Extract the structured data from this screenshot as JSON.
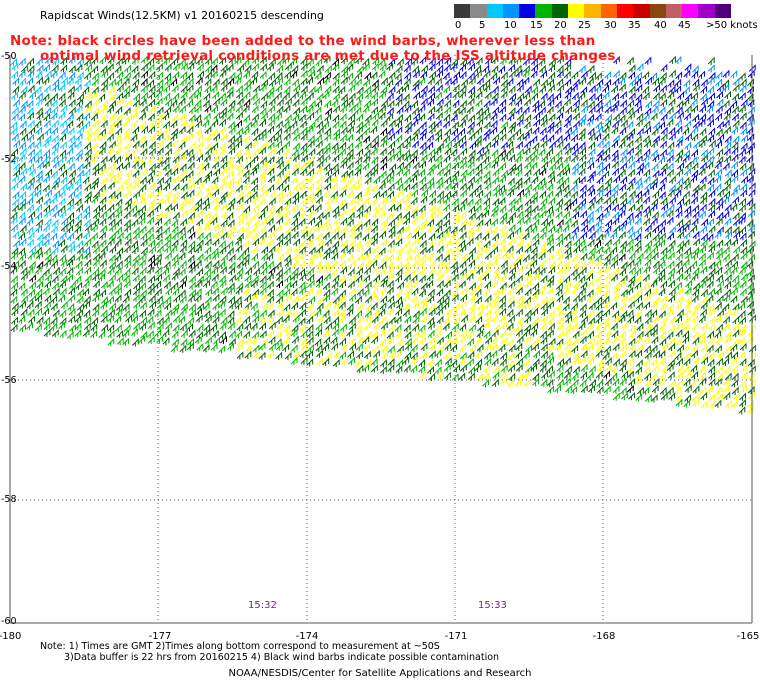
{
  "header": {
    "title": "Rapidscat Winds(12.5KM) v1 20160215 descending"
  },
  "legend": {
    "colors": [
      "#3a3a3a",
      "#8a8a8a",
      "#00c8ff",
      "#0096ff",
      "#0000e0",
      "#00b400",
      "#006400",
      "#ffff00",
      "#ffb400",
      "#ff6400",
      "#ff0000",
      "#c80000",
      "#8b4513",
      "#c06060",
      "#ff00ff",
      "#a000c8",
      "#500078"
    ],
    "labels": [
      "0",
      "5",
      "10",
      "15",
      "20",
      "25",
      "30",
      "35",
      "40",
      "45",
      ">50 knots"
    ]
  },
  "note": {
    "line1": "Note: black circles have been added to the wind barbs, wherever less than",
    "line2": "optimal wind retrieval conditions are met due to the ISS altitude changes."
  },
  "map": {
    "lat_labels": [
      "-50",
      "-52",
      "-54",
      "-56",
      "-58",
      "-60"
    ],
    "lon_labels": [
      "-180",
      "-177",
      "-174",
      "-171",
      "-168",
      "-165"
    ],
    "time_labels": [
      "15:32",
      "15:33"
    ],
    "grid_color": "#555555",
    "barb_colors": {
      "light_blue": "#00c8ff",
      "blue": "#0000e0",
      "mid_blue": "#0096ff",
      "green": "#00b400",
      "dark_green": "#006400",
      "yellow": "#ffff00",
      "black": "#000000"
    }
  },
  "footnote": {
    "line1": "Note: 1) Times are GMT 2)Times along bottom correspond to measurement at ~50S",
    "line2": "3)Data buffer is 22 hrs from 20160215 4) Black wind barbs indicate possible contamination"
  },
  "credit": "NOAA/NESDIS/Center for Satellite Applications and Research"
}
